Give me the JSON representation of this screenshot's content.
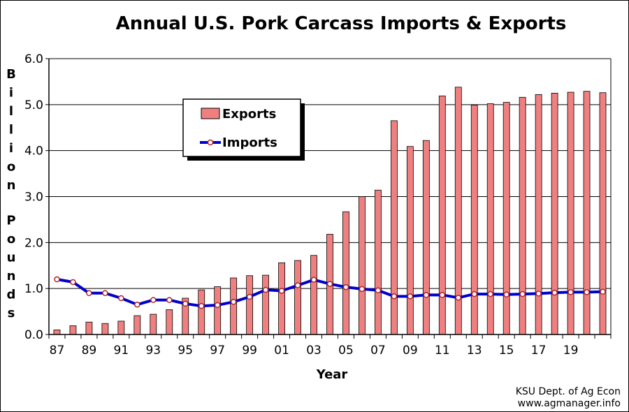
{
  "chart_data": {
    "type": "bar",
    "title": "Annual U.S. Pork Carcass Imports & Exports",
    "xlabel": "Year",
    "ylabel": "Billion Pounds",
    "ylim": [
      0,
      6
    ],
    "yticks": [
      "0.0",
      "1.0",
      "2.0",
      "3.0",
      "4.0",
      "5.0",
      "6.0"
    ],
    "xtick_labels": [
      "87",
      "89",
      "91",
      "93",
      "95",
      "97",
      "99",
      "01",
      "03",
      "05",
      "07",
      "09",
      "11",
      "13",
      "15",
      "17",
      "19"
    ],
    "categories": [
      "1987",
      "1988",
      "1989",
      "1990",
      "1991",
      "1992",
      "1993",
      "1994",
      "1995",
      "1996",
      "1997",
      "1998",
      "1999",
      "2000",
      "2001",
      "2002",
      "2003",
      "2004",
      "2005",
      "2006",
      "2007",
      "2008",
      "2009",
      "2010",
      "2011",
      "2012",
      "2013",
      "2014",
      "2015",
      "2016",
      "2017",
      "2018",
      "2019",
      "2020",
      "2021"
    ],
    "grid": true,
    "legend_position": "top-left inside plot",
    "series": [
      {
        "name": "Exports",
        "type": "bar",
        "color": "#F08080",
        "values": [
          0.1,
          0.19,
          0.27,
          0.24,
          0.29,
          0.41,
          0.44,
          0.54,
          0.79,
          0.97,
          1.04,
          1.23,
          1.28,
          1.29,
          1.56,
          1.61,
          1.72,
          2.18,
          2.67,
          3.0,
          3.14,
          4.65,
          4.09,
          4.22,
          5.19,
          5.38,
          4.99,
          5.02,
          5.05,
          5.16,
          5.22,
          5.25,
          5.27,
          5.29,
          5.26
        ]
      },
      {
        "name": "Imports",
        "type": "line",
        "color": "#0000CC",
        "values": [
          1.2,
          1.14,
          0.9,
          0.9,
          0.79,
          0.65,
          0.75,
          0.75,
          0.67,
          0.62,
          0.64,
          0.71,
          0.82,
          0.97,
          0.95,
          1.07,
          1.19,
          1.1,
          1.03,
          0.99,
          0.96,
          0.83,
          0.83,
          0.86,
          0.86,
          0.8,
          0.88,
          0.88,
          0.87,
          0.88,
          0.89,
          0.91,
          0.92,
          0.92,
          0.93
        ]
      }
    ]
  },
  "source": {
    "line1": "KSU Dept. of Ag Econ",
    "line2": "www.agmanager.info"
  },
  "colors": {
    "export_fill": "#F08080",
    "import_line": "#0000CC",
    "marker_fill": "#FFFFFF",
    "marker_stroke": "#B22222"
  }
}
